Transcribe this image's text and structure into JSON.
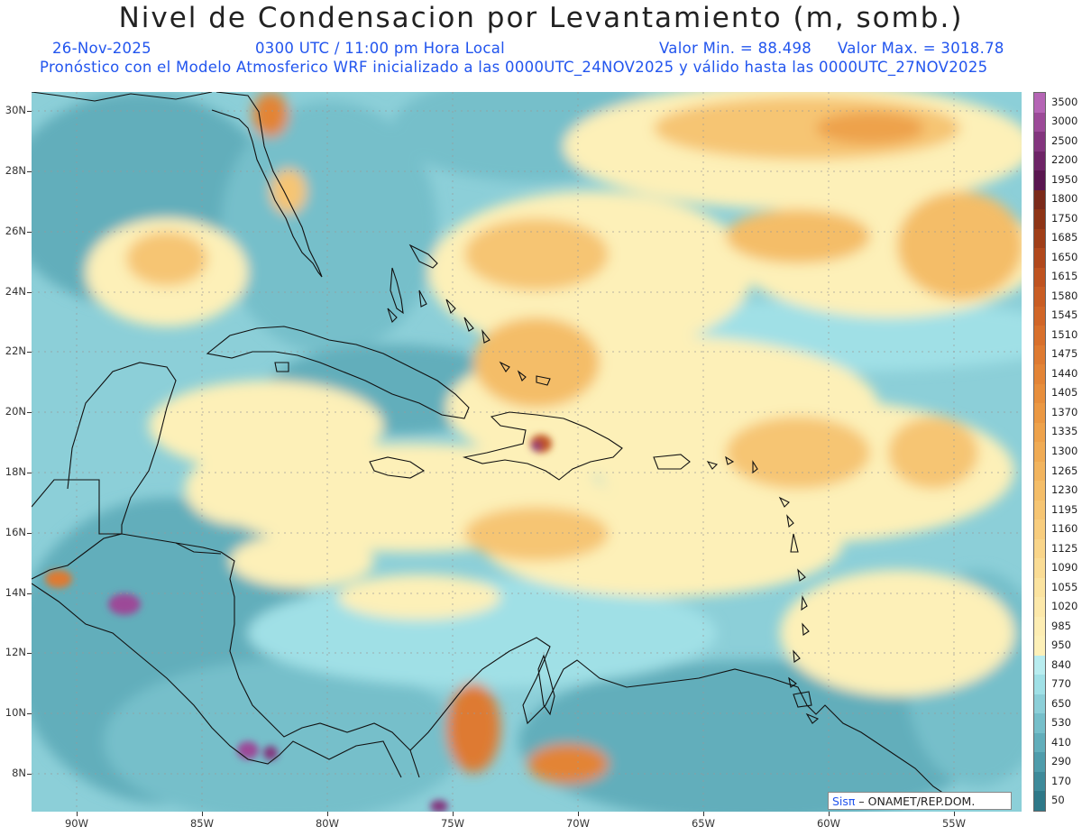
{
  "header": {
    "title": "Nivel de Condensacion por Levantamiento (m, somb.)",
    "date": "26-Nov-2025",
    "time": "0300 UTC / 11:00 pm Hora Local",
    "min_label": "Valor Min. = 88.498",
    "max_label": "Valor Max. = 3018.78",
    "forecast_note": "Pronóstico con el Modelo Atmosferico WRF inicializado a las 0000UTC_24NOV2025 y válido hasta las  0000UTC_27NOV2025"
  },
  "map": {
    "lat_labels": [
      "30N",
      "28N",
      "26N",
      "24N",
      "22N",
      "20N",
      "18N",
      "16N",
      "14N",
      "12N",
      "10N",
      "8N"
    ],
    "lon_labels": [
      "90W",
      "85W",
      "80W",
      "75W",
      "70W",
      "65W",
      "60W",
      "55W"
    ],
    "credit_brand": "Sisπ",
    "credit_text": " – ONAMET/REP.DOM."
  },
  "colorbar": {
    "levels": [
      {
        "label": "3500",
        "color": "#b565b5"
      },
      {
        "label": "3000",
        "color": "#9c4a98"
      },
      {
        "label": "2500",
        "color": "#83357e"
      },
      {
        "label": "2200",
        "color": "#6e2467"
      },
      {
        "label": "1950",
        "color": "#5a1650"
      },
      {
        "label": "1800",
        "color": "#7b2a1a"
      },
      {
        "label": "1750",
        "color": "#8e3416"
      },
      {
        "label": "1685",
        "color": "#a03e18"
      },
      {
        "label": "1650",
        "color": "#b1481c"
      },
      {
        "label": "1615",
        "color": "#bf5320"
      },
      {
        "label": "1580",
        "color": "#c95d24"
      },
      {
        "label": "1545",
        "color": "#d16628"
      },
      {
        "label": "1510",
        "color": "#d8702c"
      },
      {
        "label": "1475",
        "color": "#de7a31"
      },
      {
        "label": "1440",
        "color": "#e38436"
      },
      {
        "label": "1405",
        "color": "#e78e3c"
      },
      {
        "label": "1370",
        "color": "#eb9843"
      },
      {
        "label": "1335",
        "color": "#eea24b"
      },
      {
        "label": "1300",
        "color": "#f0ab54"
      },
      {
        "label": "1265",
        "color": "#f2b45e"
      },
      {
        "label": "1230",
        "color": "#f4bd68"
      },
      {
        "label": "1195",
        "color": "#f6c573"
      },
      {
        "label": "1160",
        "color": "#f8cd7e"
      },
      {
        "label": "1125",
        "color": "#f9d58a"
      },
      {
        "label": "1090",
        "color": "#fadc95"
      },
      {
        "label": "1055",
        "color": "#fbe3a0"
      },
      {
        "label": "1020",
        "color": "#fce8aa"
      },
      {
        "label": "985",
        "color": "#fdedb3"
      },
      {
        "label": "950",
        "color": "#fdf0b8"
      },
      {
        "label": "840",
        "color": "#b8ecef"
      },
      {
        "label": "770",
        "color": "#a0e0e6"
      },
      {
        "label": "650",
        "color": "#8ccfd8"
      },
      {
        "label": "530",
        "color": "#76bfca"
      },
      {
        "label": "410",
        "color": "#62aebb"
      },
      {
        "label": "290",
        "color": "#4f9cab"
      },
      {
        "label": "170",
        "color": "#3e8a9a"
      },
      {
        "label": "50",
        "color": "#2e7888"
      }
    ]
  }
}
